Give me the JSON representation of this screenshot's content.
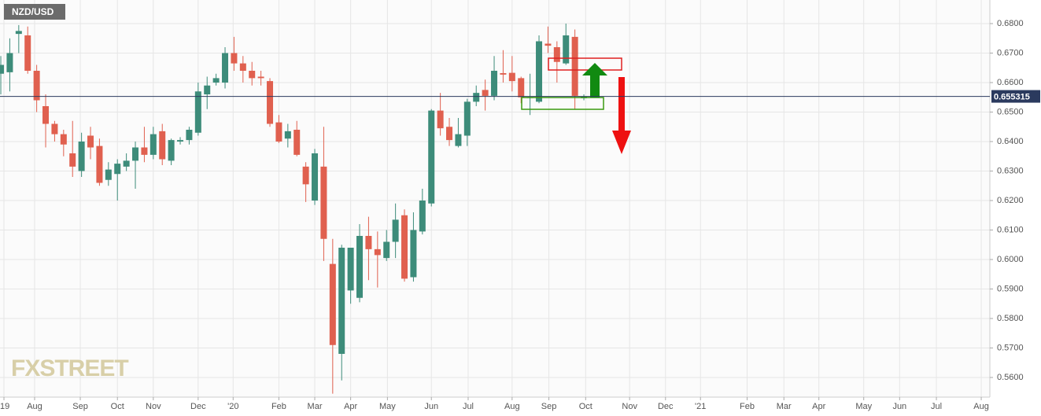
{
  "chart_data": {
    "type": "candlestick",
    "title": "NZD/USD",
    "watermark": "FXSTREET",
    "up_color": "#3d8c7a",
    "down_color": "#e0604f",
    "grid": true,
    "x": [
      0,
      1,
      2,
      3,
      4,
      5,
      6,
      7,
      8,
      9,
      10,
      11,
      12,
      13,
      14,
      15,
      16,
      17,
      18,
      19,
      20,
      21,
      22,
      23,
      24,
      25,
      26,
      27,
      28,
      29,
      30,
      31,
      32,
      33,
      34,
      35,
      36,
      37,
      38,
      39,
      40,
      41,
      42,
      43,
      44,
      45,
      46,
      47,
      48,
      49,
      50,
      51,
      52,
      53,
      54,
      55,
      56,
      57,
      58,
      59,
      60,
      61,
      62,
      63,
      64,
      65
    ],
    "open": [
      0.663,
      0.6635,
      0.6765,
      0.676,
      0.664,
      0.652,
      0.646,
      0.6425,
      0.636,
      0.63,
      0.642,
      0.6385,
      0.627,
      0.629,
      0.6315,
      0.6335,
      0.638,
      0.6355,
      0.6435,
      0.6335,
      0.64,
      0.6405,
      0.643,
      0.656,
      0.66,
      0.66,
      0.67,
      0.6665,
      0.664,
      0.662,
      0.6605,
      0.6465,
      0.641,
      0.644,
      0.6315,
      0.62,
      0.6315,
      0.5985,
      0.568,
      0.5895,
      0.587,
      0.608,
      0.6035,
      0.6005,
      0.606,
      0.615,
      0.594,
      0.6095,
      0.619,
      0.6505,
      0.645,
      0.6385,
      0.642,
      0.6535,
      0.6575,
      0.6555,
      0.6632,
      0.6633,
      0.6615,
      0.6548,
      0.6535,
      0.6732,
      0.672,
      0.6665,
      0.6755,
      0.6547
    ],
    "high": [
      0.669,
      0.675,
      0.6795,
      0.679,
      0.666,
      0.656,
      0.647,
      0.644,
      0.647,
      0.643,
      0.645,
      0.641,
      0.633,
      0.634,
      0.636,
      0.64,
      0.645,
      0.645,
      0.646,
      0.641,
      0.6415,
      0.645,
      0.66,
      0.662,
      0.663,
      0.672,
      0.6755,
      0.669,
      0.667,
      0.664,
      0.6615,
      0.649,
      0.646,
      0.647,
      0.633,
      0.6375,
      0.645,
      0.607,
      0.605,
      0.604,
      0.612,
      0.6145,
      0.6095,
      0.61,
      0.619,
      0.617,
      0.616,
      0.624,
      0.651,
      0.6565,
      0.648,
      0.648,
      0.6545,
      0.659,
      0.661,
      0.669,
      0.671,
      0.669,
      0.662,
      0.663,
      0.676,
      0.679,
      0.674,
      0.68,
      0.678,
      0.656
    ],
    "low": [
      0.656,
      0.657,
      0.67,
      0.663,
      0.65,
      0.638,
      0.64,
      0.635,
      0.628,
      0.628,
      0.634,
      0.625,
      0.625,
      0.62,
      0.63,
      0.624,
      0.633,
      0.634,
      0.632,
      0.632,
      0.639,
      0.639,
      0.642,
      0.651,
      0.659,
      0.658,
      0.664,
      0.66,
      0.659,
      0.659,
      0.645,
      0.6395,
      0.638,
      0.635,
      0.6195,
      0.6185,
      0.5995,
      0.5545,
      0.559,
      0.585,
      0.5855,
      0.593,
      0.5905,
      0.5995,
      0.6005,
      0.5925,
      0.5925,
      0.6085,
      0.618,
      0.642,
      0.6385,
      0.638,
      0.6385,
      0.652,
      0.6505,
      0.654,
      0.66,
      0.657,
      0.653,
      0.649,
      0.653,
      0.67,
      0.66,
      0.666,
      0.651,
      0.654
    ],
    "close": [
      0.666,
      0.67,
      0.6775,
      0.664,
      0.654,
      0.646,
      0.6425,
      0.639,
      0.6315,
      0.64,
      0.638,
      0.626,
      0.6305,
      0.6325,
      0.6335,
      0.638,
      0.6355,
      0.6425,
      0.634,
      0.6405,
      0.6405,
      0.644,
      0.657,
      0.659,
      0.6615,
      0.67,
      0.6665,
      0.664,
      0.6615,
      0.6615,
      0.646,
      0.64,
      0.6435,
      0.6355,
      0.6255,
      0.636,
      0.607,
      0.571,
      0.604,
      0.604,
      0.608,
      0.6035,
      0.6015,
      0.606,
      0.6135,
      0.5935,
      0.61,
      0.62,
      0.6505,
      0.6445,
      0.6405,
      0.6425,
      0.6535,
      0.6565,
      0.6555,
      0.664,
      0.6627,
      0.6605,
      0.655,
      0.655,
      0.674,
      0.6725,
      0.667,
      0.676,
      0.6555,
      0.6552
    ],
    "last_price": 0.655315,
    "xlim": [
      -0.09,
      110.26
    ],
    "xticks": [
      {
        "value": 0.35,
        "label": "'19"
      },
      {
        "value": 3.77,
        "label": "Aug"
      },
      {
        "value": 8.86,
        "label": "Sep"
      },
      {
        "value": 13.0,
        "label": "Oct"
      },
      {
        "value": 17.0,
        "label": "Nov"
      },
      {
        "value": 22.0,
        "label": "Dec"
      },
      {
        "value": 25.9,
        "label": "'20"
      },
      {
        "value": 31.0,
        "label": "Feb"
      },
      {
        "value": 35.0,
        "label": "Mar"
      },
      {
        "value": 39.0,
        "label": "Apr"
      },
      {
        "value": 43.1,
        "label": "May"
      },
      {
        "value": 48.0,
        "label": "Jun"
      },
      {
        "value": 52.1,
        "label": "Jul"
      },
      {
        "value": 57.0,
        "label": "Aug"
      },
      {
        "value": 61.1,
        "label": "Sep"
      },
      {
        "value": 65.2,
        "label": "Oct"
      },
      {
        "value": 70.1,
        "label": "Nov"
      },
      {
        "value": 74.1,
        "label": "Dec"
      },
      {
        "value": 78.0,
        "label": "'21"
      },
      {
        "value": 83.2,
        "label": "Feb"
      },
      {
        "value": 87.3,
        "label": "Mar"
      },
      {
        "value": 91.2,
        "label": "Apr"
      },
      {
        "value": 96.2,
        "label": "May"
      },
      {
        "value": 100.2,
        "label": "Jun"
      },
      {
        "value": 104.3,
        "label": "Jul"
      },
      {
        "value": 109.3,
        "label": "Aug"
      }
    ],
    "ylim": [
      0.55333,
      0.688
    ],
    "yticks": [
      {
        "value": 0.56,
        "label": "0.5600"
      },
      {
        "value": 0.57,
        "label": "0.5700"
      },
      {
        "value": 0.58,
        "label": "0.5800"
      },
      {
        "value": 0.59,
        "label": "0.5900"
      },
      {
        "value": 0.6,
        "label": "0.6000"
      },
      {
        "value": 0.61,
        "label": "0.6100"
      },
      {
        "value": 0.62,
        "label": "0.6200"
      },
      {
        "value": 0.63,
        "label": "0.6300"
      },
      {
        "value": 0.64,
        "label": "0.6400"
      },
      {
        "value": 0.65,
        "label": "0.6500"
      },
      {
        "value": 0.66,
        "label": "0.6600"
      },
      {
        "value": 0.67,
        "label": "0.6700"
      },
      {
        "value": 0.68,
        "label": "0.6800"
      }
    ]
  }
}
